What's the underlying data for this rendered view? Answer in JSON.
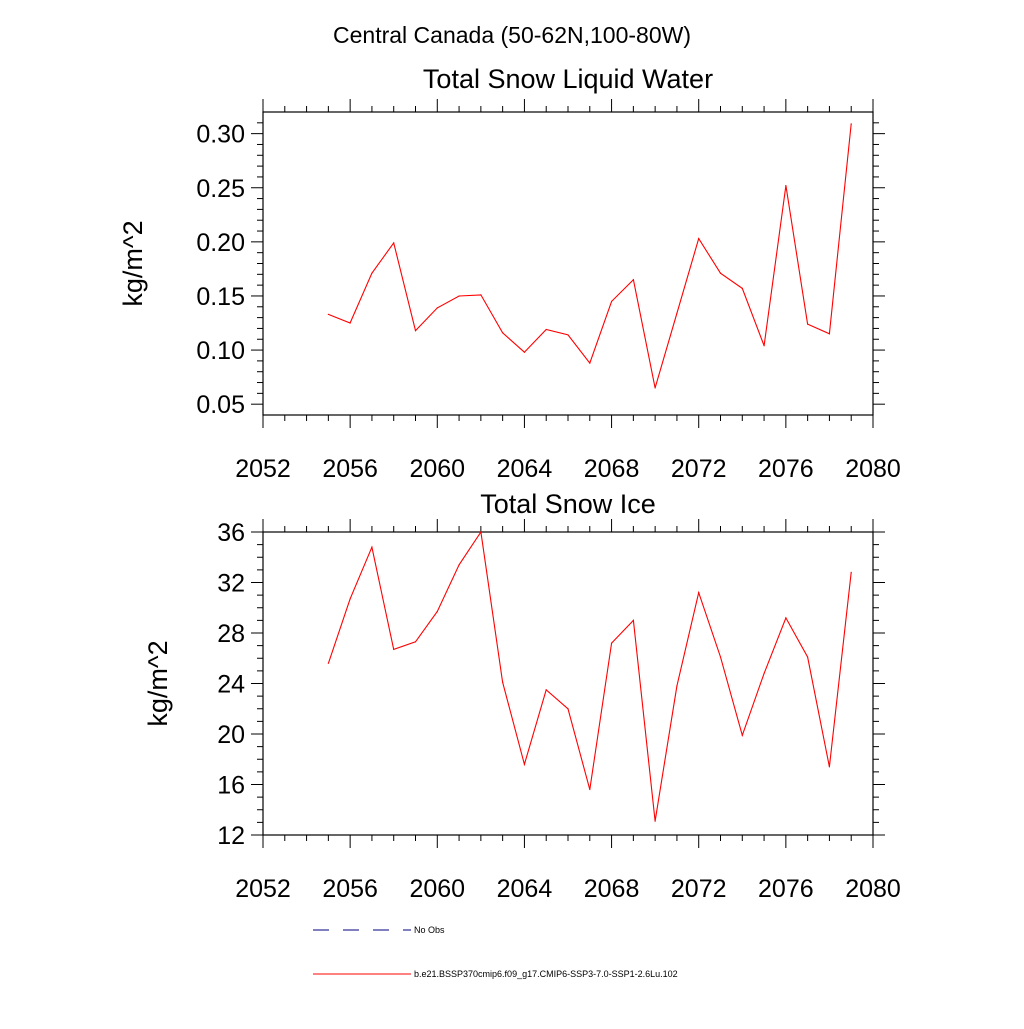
{
  "figure_title": "Central Canada (50-62N,100-80W)",
  "legend": {
    "entries": [
      {
        "label": "No Obs",
        "color": "#000080",
        "dash": true
      },
      {
        "label": "b.e21.BSSP370cmip6.f09_g17.CMIP6-SSP3-7.0-SSP1-2.6Lu.102",
        "color": "#ff0000",
        "dash": false
      }
    ]
  },
  "chart_data": [
    {
      "type": "line",
      "title": "Total Snow Liquid Water",
      "xlabel": "",
      "ylabel": "kg/m^2",
      "xlim": [
        2052,
        2080
      ],
      "ylim": [
        0.04,
        0.32
      ],
      "xticks": [
        2052,
        2056,
        2060,
        2064,
        2068,
        2072,
        2076,
        2080
      ],
      "xtick_labels": [
        "2052",
        "2056",
        "2060",
        "2064",
        "2068",
        "2072",
        "2076",
        "2080"
      ],
      "yticks": [
        0.05,
        0.1,
        0.15,
        0.2,
        0.25,
        0.3
      ],
      "ytick_labels": [
        "0.05",
        "0.10",
        "0.15",
        "0.20",
        "0.25",
        "0.30"
      ],
      "grid": false,
      "series": [
        {
          "name": "b.e21.BSSP370cmip6.f09_g17.CMIP6-SSP3-7.0-SSP1-2.6Lu.102",
          "color": "#ff0000",
          "x": [
            2055,
            2056,
            2057,
            2058,
            2059,
            2060,
            2061,
            2062,
            2063,
            2064,
            2065,
            2066,
            2067,
            2068,
            2069,
            2070,
            2071,
            2072,
            2073,
            2074,
            2075,
            2076,
            2077,
            2078,
            2079
          ],
          "y": [
            0.133,
            0.125,
            0.171,
            0.199,
            0.118,
            0.139,
            0.15,
            0.151,
            0.116,
            0.098,
            0.119,
            0.114,
            0.088,
            0.145,
            0.165,
            0.065,
            0.134,
            0.203,
            0.171,
            0.157,
            0.104,
            0.252,
            0.124,
            0.115,
            0.309
          ]
        }
      ]
    },
    {
      "type": "line",
      "title": "Total Snow Ice",
      "xlabel": "",
      "ylabel": "kg/m^2",
      "xlim": [
        2052,
        2080
      ],
      "ylim": [
        12,
        36
      ],
      "xticks": [
        2052,
        2056,
        2060,
        2064,
        2068,
        2072,
        2076,
        2080
      ],
      "xtick_labels": [
        "2052",
        "2056",
        "2060",
        "2064",
        "2068",
        "2072",
        "2076",
        "2080"
      ],
      "yticks": [
        12,
        16,
        20,
        24,
        28,
        32,
        36
      ],
      "ytick_labels": [
        "12",
        "16",
        "20",
        "24",
        "28",
        "32",
        "36"
      ],
      "grid": false,
      "series": [
        {
          "name": "b.e21.BSSP370cmip6.f09_g17.CMIP6-SSP3-7.0-SSP1-2.6Lu.102",
          "color": "#ff0000",
          "x": [
            2055,
            2056,
            2057,
            2058,
            2059,
            2060,
            2061,
            2062,
            2063,
            2064,
            2065,
            2066,
            2067,
            2068,
            2069,
            2070,
            2071,
            2072,
            2073,
            2074,
            2075,
            2076,
            2077,
            2078,
            2079
          ],
          "y": [
            25.6,
            30.7,
            34.8,
            26.7,
            27.3,
            29.7,
            33.4,
            36.0,
            24.1,
            17.6,
            23.5,
            22.0,
            15.6,
            27.2,
            29.0,
            13.1,
            23.8,
            31.2,
            26.1,
            19.9,
            24.8,
            29.2,
            26.1,
            17.4,
            32.8
          ]
        }
      ]
    }
  ]
}
